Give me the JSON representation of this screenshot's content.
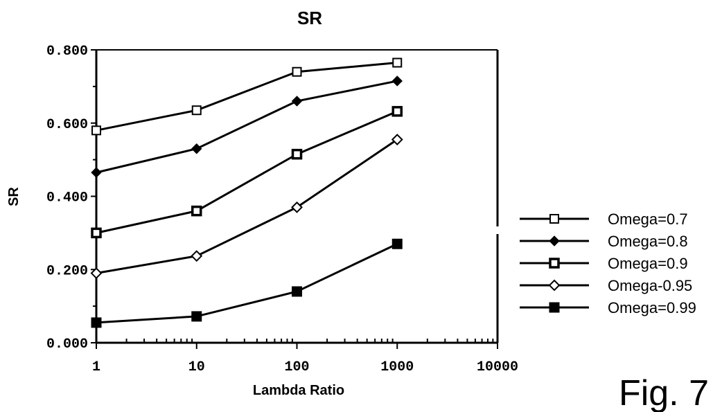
{
  "figure_label": "Fig. 7",
  "chart_data": {
    "type": "line",
    "title": "SR",
    "xlabel": "Lambda Ratio",
    "ylabel": "SR",
    "x_scale": "log",
    "xlim": [
      1,
      10000
    ],
    "ylim": [
      0,
      0.8
    ],
    "x_ticks": [
      {
        "value": 1,
        "label": "1"
      },
      {
        "value": 10,
        "label": "10"
      },
      {
        "value": 100,
        "label": "100"
      },
      {
        "value": 1000,
        "label": "1000"
      },
      {
        "value": 10000,
        "label": "10000"
      }
    ],
    "y_ticks": [
      {
        "value": 0,
        "label": "0.000"
      },
      {
        "value": 0.2,
        "label": "0.200"
      },
      {
        "value": 0.4,
        "label": "0.400"
      },
      {
        "value": 0.6,
        "label": "0.600"
      },
      {
        "value": 0.8,
        "label": "0.800"
      }
    ],
    "x": [
      1,
      10,
      100,
      1000
    ],
    "legend_position": "right",
    "series": [
      {
        "name": "Omega=0.7",
        "marker": "open-square",
        "values": [
          0.58,
          0.635,
          0.74,
          0.765
        ]
      },
      {
        "name": "Omega=0.8",
        "marker": "filled-diamond",
        "values": [
          0.465,
          0.53,
          0.66,
          0.715
        ]
      },
      {
        "name": "Omega=0.9",
        "marker": "bold-square",
        "values": [
          0.3,
          0.36,
          0.515,
          0.632
        ]
      },
      {
        "name": "Omega-0.95",
        "marker": "open-diamond",
        "values": [
          0.19,
          0.237,
          0.37,
          0.555
        ]
      },
      {
        "name": "Omega=0.99",
        "marker": "filled-square",
        "values": [
          0.055,
          0.072,
          0.14,
          0.27
        ]
      }
    ]
  }
}
